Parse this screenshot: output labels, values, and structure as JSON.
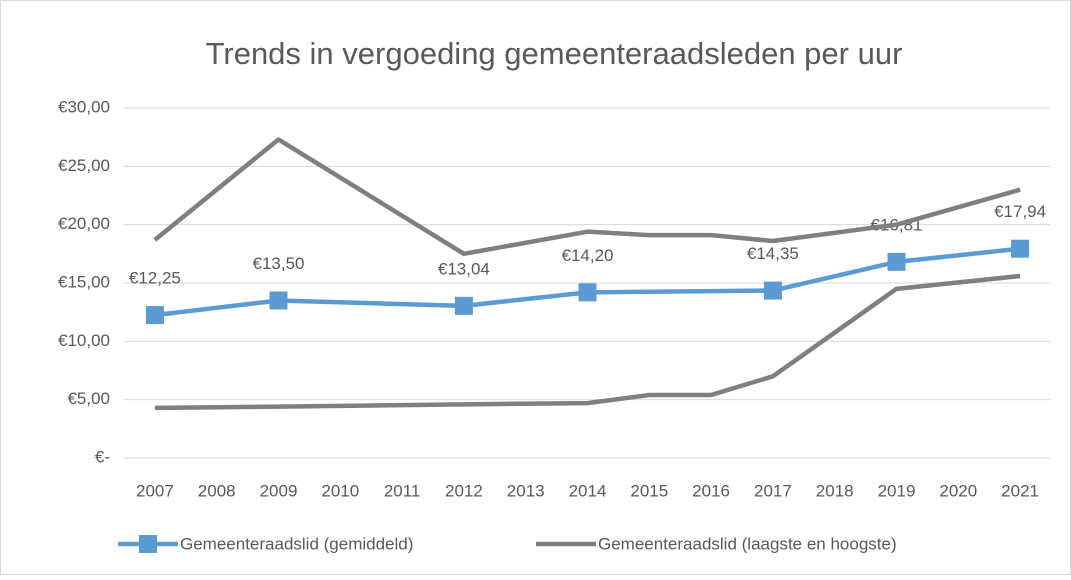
{
  "chart_data": {
    "type": "line",
    "title": "Trends in vergoeding gemeenteraadsleden per uur",
    "xlim": [
      2006.5,
      2021.5
    ],
    "xticks": [
      2007,
      2008,
      2009,
      2010,
      2011,
      2012,
      2013,
      2014,
      2015,
      2016,
      2017,
      2018,
      2019,
      2020,
      2021
    ],
    "ylim": [
      0,
      30
    ],
    "yticks": [
      {
        "value": 0,
        "label": "€-"
      },
      {
        "value": 5,
        "label": "€5,00"
      },
      {
        "value": 10,
        "label": "€10,00"
      },
      {
        "value": 15,
        "label": "€15,00"
      },
      {
        "value": 20,
        "label": "€20,00"
      },
      {
        "value": 25,
        "label": "€25,00"
      },
      {
        "value": 30,
        "label": "€30,00"
      }
    ],
    "grid": true,
    "legend": "bottom",
    "series": [
      {
        "name": "Gemeenteraadslid (gemiddeld)",
        "color": "#5b9bd5",
        "marker": "square",
        "x": [
          2007,
          2009,
          2012,
          2014,
          2017,
          2019,
          2021
        ],
        "values": [
          12.25,
          13.5,
          13.04,
          14.2,
          14.35,
          16.81,
          17.94
        ],
        "value_labels": [
          "€12,25",
          "€13,50",
          "€13,04",
          "€14,20",
          "€14,35",
          "€16,81",
          "€17,94"
        ]
      },
      {
        "name": "Gemeenteraadslid (laagste en hoogste)",
        "color": "#7f7f7f",
        "x": [
          2007,
          2009,
          2012,
          2014,
          2015,
          2016,
          2017,
          2019,
          2021
        ],
        "values": [
          4.3,
          4.4,
          4.6,
          4.7,
          5.4,
          5.4,
          7.0,
          14.5,
          15.6
        ]
      },
      {
        "color": "#7f7f7f",
        "x": [
          2007,
          2009,
          2012,
          2014,
          2015,
          2016,
          2017,
          2019,
          2021
        ],
        "values": [
          18.7,
          27.3,
          17.5,
          19.4,
          19.1,
          19.1,
          18.6,
          20.0,
          23.0
        ]
      }
    ]
  }
}
